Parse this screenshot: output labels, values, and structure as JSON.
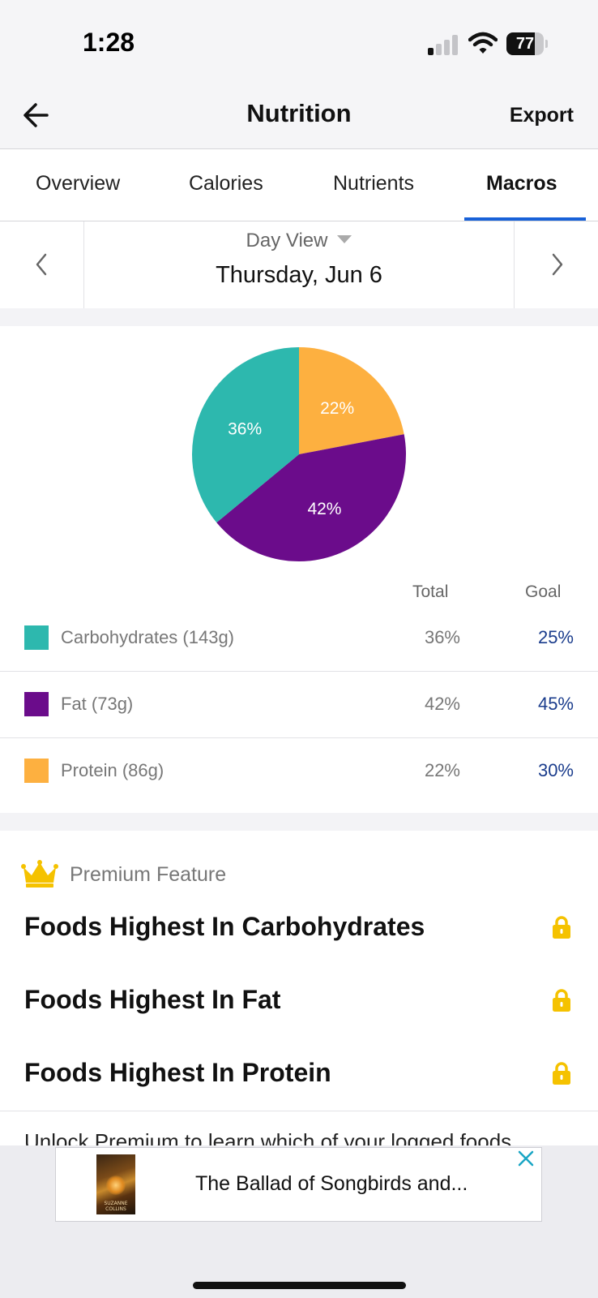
{
  "status_bar": {
    "time": "1:28",
    "battery": "77",
    "battery_level": 0.77
  },
  "nav": {
    "title": "Nutrition",
    "export_label": "Export",
    "back_icon": "arrow-left-icon"
  },
  "tabs": [
    {
      "label": "Overview",
      "active": false
    },
    {
      "label": "Calories",
      "active": false
    },
    {
      "label": "Nutrients",
      "active": false
    },
    {
      "label": "Macros",
      "active": true
    }
  ],
  "date_bar": {
    "view_label": "Day View",
    "date_label": "Thursday, Jun 6",
    "prev_icon": "chevron-left-icon",
    "next_icon": "chevron-right-icon"
  },
  "chart_data": {
    "type": "pie",
    "categories": [
      "Carbohydrates (143g)",
      "Fat (73g)",
      "Protein (86g)"
    ],
    "values": [
      36,
      42,
      22
    ],
    "slice_labels": [
      "36%",
      "42%",
      "22%"
    ],
    "colors": [
      "#2db8ae",
      "#6b0c8b",
      "#fdb040"
    ]
  },
  "macros": {
    "total_header": "Total",
    "goal_header": "Goal",
    "rows": [
      {
        "label": "Carbohydrates (143g)",
        "total": "36%",
        "goal": "25%",
        "color": "#2db8ae"
      },
      {
        "label": "Fat (73g)",
        "total": "42%",
        "goal": "45%",
        "color": "#6b0c8b"
      },
      {
        "label": "Protein (86g)",
        "total": "22%",
        "goal": "30%",
        "color": "#fdb040"
      }
    ]
  },
  "premium": {
    "feature_label": "Premium Feature",
    "crown_icon": "crown-icon",
    "lock_icon": "lock-icon",
    "items": [
      {
        "title": "Foods Highest In Carbohydrates"
      },
      {
        "title": "Foods Highest In Fat"
      },
      {
        "title": "Foods Highest In Protein"
      }
    ],
    "unlock_text": "Unlock Premium to learn which of your logged foods"
  },
  "ad": {
    "text": "The Ballad of Songbirds and...",
    "book_author": "SUZANNE COLLINS"
  },
  "colors": {
    "accent": "#1861d8",
    "goal_text": "#1a3c8c",
    "premium_gold": "#f5c200"
  }
}
